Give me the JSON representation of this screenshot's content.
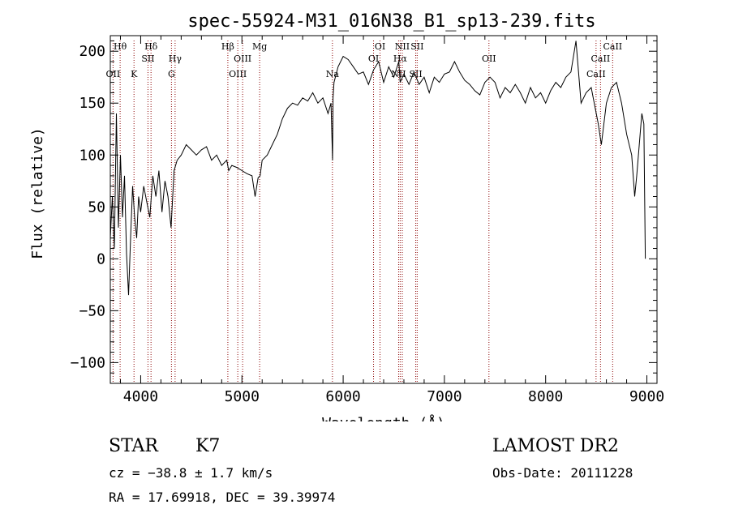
{
  "chart_data": {
    "type": "line",
    "title": "spec-55924-M31_016N38_B1_sp13-239.fits",
    "xlabel": "Wavelength (Å)",
    "ylabel": "Flux (relative)",
    "xlim": [
      3700,
      9100
    ],
    "ylim": [
      -120,
      215
    ],
    "xticks": [
      4000,
      5000,
      6000,
      7000,
      8000,
      9000
    ],
    "yticks": [
      -100,
      -50,
      0,
      50,
      100,
      150,
      200
    ],
    "xtick_labels": [
      "4000",
      "5000",
      "6000",
      "7000",
      "8000",
      "9000"
    ],
    "ytick_labels": [
      "−100",
      "−50",
      "0",
      "50",
      "100",
      "150",
      "200"
    ],
    "grid": false,
    "series": [
      {
        "x": [
          3700,
          3720,
          3740,
          3760,
          3780,
          3800,
          3820,
          3840,
          3860,
          3880,
          3900,
          3920,
          3940,
          3960,
          3980,
          4000,
          4030,
          4060,
          4090,
          4120,
          4150,
          4180,
          4210,
          4240,
          4270,
          4300,
          4330,
          4360,
          4400,
          4450,
          4500,
          4550,
          4600,
          4650,
          4700,
          4750,
          4800,
          4850,
          4870,
          4900,
          4950,
          5000,
          5050,
          5100,
          5130,
          5160,
          5180,
          5200,
          5250,
          5300,
          5350,
          5400,
          5450,
          5500,
          5550,
          5600,
          5650,
          5700,
          5750,
          5800,
          5850,
          5880,
          5895,
          5900,
          5910,
          5950,
          6000,
          6050,
          6100,
          6150,
          6200,
          6250,
          6300,
          6350,
          6400,
          6450,
          6500,
          6550,
          6563,
          6600,
          6650,
          6700,
          6750,
          6800,
          6850,
          6900,
          6950,
          7000,
          7050,
          7100,
          7150,
          7200,
          7250,
          7300,
          7350,
          7400,
          7450,
          7500,
          7550,
          7600,
          7650,
          7700,
          7750,
          7800,
          7850,
          7900,
          7950,
          8000,
          8050,
          8100,
          8150,
          8200,
          8250,
          8300,
          8350,
          8400,
          8450,
          8500,
          8520,
          8550,
          8600,
          8650,
          8700,
          8750,
          8800,
          8850,
          8880,
          8900,
          8950,
          8970,
          8985
        ],
        "y": [
          20,
          60,
          10,
          140,
          30,
          100,
          40,
          80,
          5,
          -35,
          20,
          70,
          40,
          20,
          60,
          45,
          70,
          55,
          40,
          80,
          60,
          85,
          45,
          75,
          60,
          30,
          85,
          95,
          100,
          110,
          105,
          100,
          105,
          108,
          95,
          100,
          90,
          95,
          85,
          90,
          88,
          85,
          82,
          80,
          60,
          78,
          80,
          95,
          100,
          110,
          120,
          135,
          145,
          150,
          148,
          155,
          152,
          160,
          150,
          155,
          140,
          150,
          95,
          155,
          170,
          185,
          195,
          192,
          185,
          178,
          180,
          168,
          182,
          190,
          170,
          185,
          175,
          190,
          170,
          178,
          168,
          180,
          168,
          175,
          160,
          175,
          170,
          178,
          180,
          190,
          180,
          172,
          168,
          162,
          158,
          170,
          175,
          170,
          155,
          165,
          160,
          168,
          160,
          150,
          165,
          155,
          160,
          150,
          162,
          170,
          165,
          175,
          180,
          210,
          150,
          160,
          165,
          140,
          130,
          110,
          150,
          165,
          170,
          150,
          120,
          100,
          60,
          80,
          140,
          130,
          0
        ]
      }
    ],
    "lines": [
      {
        "x": 3727,
        "label": "OII",
        "row": 2
      },
      {
        "x": 3797,
        "label": "Hθ",
        "row": 0
      },
      {
        "x": 3934,
        "label": "K",
        "row": 2
      },
      {
        "x": 4072,
        "label": "SII",
        "row": 1
      },
      {
        "x": 4102,
        "label": "Hδ",
        "row": 0
      },
      {
        "x": 4304,
        "label": "G",
        "row": 2
      },
      {
        "x": 4340,
        "label": "Hγ",
        "row": 1
      },
      {
        "x": 4861,
        "label": "Hβ",
        "row": 0
      },
      {
        "x": 4959,
        "label": "OIII",
        "row": 2
      },
      {
        "x": 5007,
        "label": "OIII",
        "row": 1
      },
      {
        "x": 5175,
        "label": "Mg",
        "row": 0
      },
      {
        "x": 5894,
        "label": "Na",
        "row": 2
      },
      {
        "x": 6300,
        "label": "OI",
        "row": 1
      },
      {
        "x": 6364,
        "label": "OI",
        "row": 0
      },
      {
        "x": 6548,
        "label": "NII",
        "row": 2
      },
      {
        "x": 6563,
        "label": "Hα",
        "row": 1
      },
      {
        "x": 6584,
        "label": "NII",
        "row": 0
      },
      {
        "x": 6717,
        "label": "SII",
        "row": 2
      },
      {
        "x": 6731,
        "label": "SII",
        "row": 0
      },
      {
        "x": 7440,
        "label": "OII",
        "row": 1
      },
      {
        "x": 8498,
        "label": "CaII",
        "row": 2
      },
      {
        "x": 8542,
        "label": "CaII",
        "row": 1
      },
      {
        "x": 8662,
        "label": "CaII",
        "row": 0
      }
    ],
    "line_color": "#8b0000"
  },
  "info": {
    "class": "STAR",
    "subclass": "K7",
    "cz": "cz = −38.8 ± 1.7 km/s",
    "coords": "RA =  17.69918, DEC =  39.39974",
    "survey": "LAMOST DR2",
    "obsdate": "Obs-Date: 20111228"
  }
}
